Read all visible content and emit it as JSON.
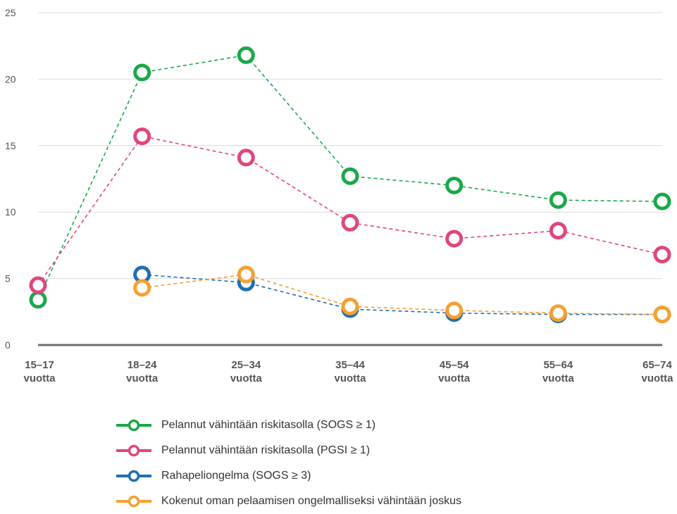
{
  "chart_data": {
    "type": "line",
    "title": "",
    "xlabel": "",
    "ylabel": "",
    "ylim": [
      0,
      25
    ],
    "yticks": [
      0,
      5,
      10,
      15,
      20,
      25
    ],
    "grid": true,
    "legend_position": "bottom",
    "categories": [
      [
        "15–17",
        "vuotta"
      ],
      [
        "18–24",
        "vuotta"
      ],
      [
        "25–34",
        "vuotta"
      ],
      [
        "35–44",
        "vuotta"
      ],
      [
        "45–54",
        "vuotta"
      ],
      [
        "55–64",
        "vuotta"
      ],
      [
        "65–74",
        "vuotta"
      ]
    ],
    "series": [
      {
        "name": "Pelannut vähintään riskitasolla (SOGS ≥ 1)",
        "color": "#1aa84a",
        "values": [
          3.4,
          20.5,
          21.8,
          12.7,
          12.0,
          10.9,
          10.8
        ]
      },
      {
        "name": "Pelannut vähintään riskitasolla (PGSI ≥ 1)",
        "color": "#e0457e",
        "values": [
          4.5,
          15.7,
          14.1,
          9.2,
          8.0,
          8.6,
          6.8
        ]
      },
      {
        "name": "Rahapeliongelma (SOGS ≥ 3)",
        "color": "#1f6fb2",
        "values": [
          null,
          5.3,
          4.7,
          2.7,
          2.4,
          2.3,
          2.3
        ]
      },
      {
        "name": "Kokenut oman pelaamisen ongelmalliseksi vähintään joskus",
        "color": "#f5a030",
        "values": [
          null,
          4.3,
          5.3,
          2.9,
          2.6,
          2.4,
          2.3
        ]
      }
    ]
  }
}
